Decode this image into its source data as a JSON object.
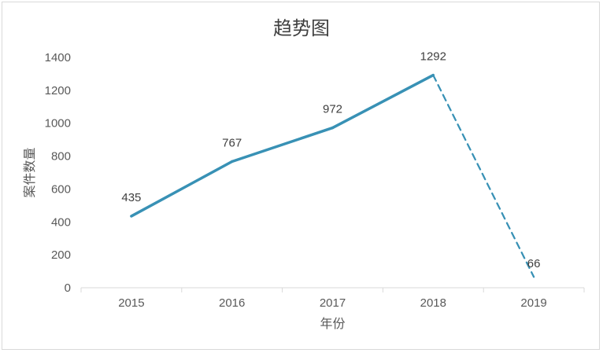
{
  "chart_data": {
    "type": "line",
    "title": "趋势图",
    "xlabel": "年份",
    "ylabel": "案件数量",
    "categories": [
      "2015",
      "2016",
      "2017",
      "2018",
      "2019"
    ],
    "values": [
      435,
      767,
      972,
      1292,
      66
    ],
    "data_labels": [
      "435",
      "767",
      "972",
      "1292",
      "66"
    ],
    "ylim": [
      0,
      1400
    ],
    "yticks": [
      0,
      200,
      400,
      600,
      800,
      1000,
      1200,
      1400
    ],
    "ytick_labels": [
      "0",
      "200",
      "400",
      "600",
      "800",
      "1000",
      "1200",
      "1400"
    ],
    "line_color": "#3891b5",
    "last_segment_style": "dashed",
    "grid": false,
    "legend": "none"
  }
}
